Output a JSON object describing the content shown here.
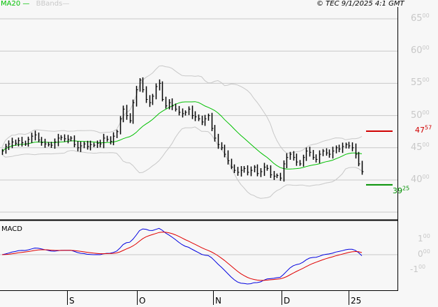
{
  "header": {
    "ma_label": "MA20",
    "bbands_label": "BBands",
    "copyright": "© TEC 9/1/2025 4:1 GMT"
  },
  "colors": {
    "bars": "#000000",
    "ma": "#00c000",
    "bbands": "#c8c8c8",
    "macd": "#0000e0",
    "signal": "#e00000",
    "resistance": "#d00000",
    "support": "#009000"
  },
  "chart_data": [
    {
      "type": "ohlc",
      "y_ticks": [
        {
          "main": "65",
          "dec": "00",
          "v": 65
        },
        {
          "main": "60",
          "dec": "00",
          "v": 60
        },
        {
          "main": "55",
          "dec": "00",
          "v": 55
        },
        {
          "main": "50",
          "dec": "00",
          "v": 50
        },
        {
          "main": "45",
          "dec": "00",
          "v": 45
        },
        {
          "main": "40",
          "dec": "00",
          "v": 40
        }
      ],
      "ylim": [
        35,
        67.5
      ],
      "grid": true,
      "x_ticks": [
        "S",
        "O",
        "N",
        "D",
        "25"
      ],
      "closes": [
        44.5,
        45.2,
        45.6,
        45.9,
        45.7,
        46.1,
        45.8,
        45.6,
        46.3,
        46.8,
        47.0,
        46.2,
        45.8,
        45.6,
        45.5,
        45.4,
        45.9,
        46.5,
        46.6,
        46.4,
        46.3,
        46.5,
        45.5,
        45.0,
        45.3,
        45.6,
        45.2,
        45.5,
        45.4,
        45.7,
        45.6,
        46.5,
        46.3,
        46.0,
        46.8,
        47.5,
        49.5,
        51.0,
        50.0,
        49.2,
        52.0,
        54.0,
        55.5,
        54.0,
        52.5,
        52.0,
        53.0,
        54.5,
        55.0,
        52.5,
        51.5,
        52.0,
        51.5,
        51.0,
        50.5,
        50.3,
        50.5,
        51.0,
        50.0,
        49.8,
        49.5,
        49.0,
        49.5,
        50.0,
        48.0,
        46.5,
        45.5,
        45.0,
        44.0,
        43.0,
        42.0,
        41.5,
        41.2,
        41.5,
        41.8,
        41.2,
        41.5,
        42.0,
        41.0,
        41.3,
        42.0,
        41.8,
        40.8,
        40.6,
        40.7,
        40.3,
        42.5,
        43.5,
        44.0,
        43.5,
        42.8,
        42.5,
        43.5,
        44.5,
        44.3,
        43.5,
        43.2,
        44.0,
        44.5,
        44.2,
        44.0,
        44.5,
        45.0,
        44.8,
        45.2,
        45.5,
        45.3,
        45.0,
        44.0,
        42.5,
        41.3
      ],
      "overlays": [
        "MA20",
        "BBands"
      ],
      "levels": [
        {
          "label": "47",
          "dec": "57",
          "value": 47.57,
          "color": "#d00000"
        },
        {
          "label": "39",
          "dec": "25",
          "value": 39.25,
          "color": "#009000"
        }
      ]
    },
    {
      "type": "line",
      "title": "MACD",
      "y_ticks": [
        {
          "main": "1",
          "dec": "00",
          "v": 1
        },
        {
          "main": "0",
          "dec": "00",
          "v": 0
        },
        {
          "main": "-1",
          "dec": "00",
          "v": -1
        }
      ],
      "series": [
        "MACD",
        "Signal"
      ]
    }
  ]
}
